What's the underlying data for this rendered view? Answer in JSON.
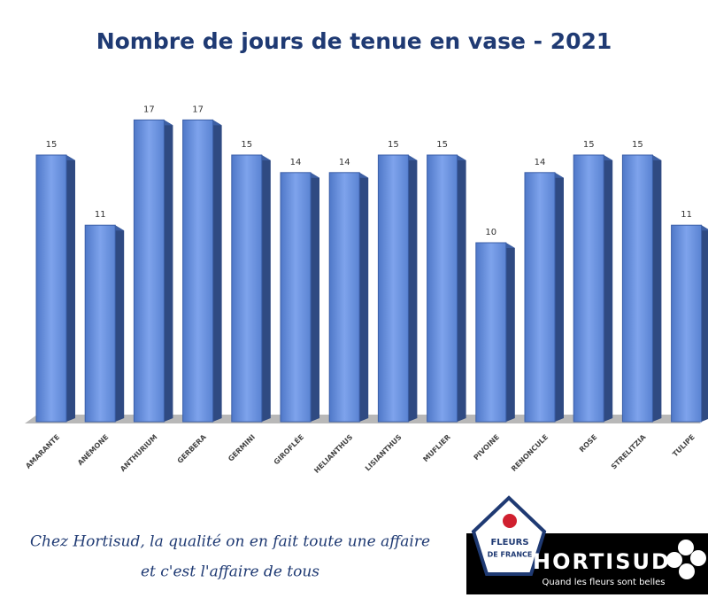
{
  "chart_data": {
    "type": "bar",
    "title": "Nombre de jours de tenue en vase - 2021",
    "categories": [
      "AMARANTE",
      "ANÉMONE",
      "ANTHURIUM",
      "GERBERA",
      "GERMINI",
      "GIROFLÉE",
      "HELIANTHUS",
      "LISIANTHUS",
      "MUFLIER",
      "PIVOINE",
      "RENONCULE",
      "ROSE",
      "STRELITZIA",
      "TULIPE"
    ],
    "values": [
      15,
      11,
      17,
      17,
      15,
      14,
      14,
      15,
      15,
      10,
      14,
      15,
      15,
      11
    ],
    "color": "#5b86d6"
  },
  "footer": {
    "slogan": [
      "Chez Hortisud, la qualité on en fait toute une affaire",
      "et c'est l'affaire de tous"
    ],
    "badge": [
      "FLEURS",
      "DE FRANCE"
    ],
    "brand": "HORTISUD",
    "tagline": "Quand les fleurs sont belles"
  }
}
